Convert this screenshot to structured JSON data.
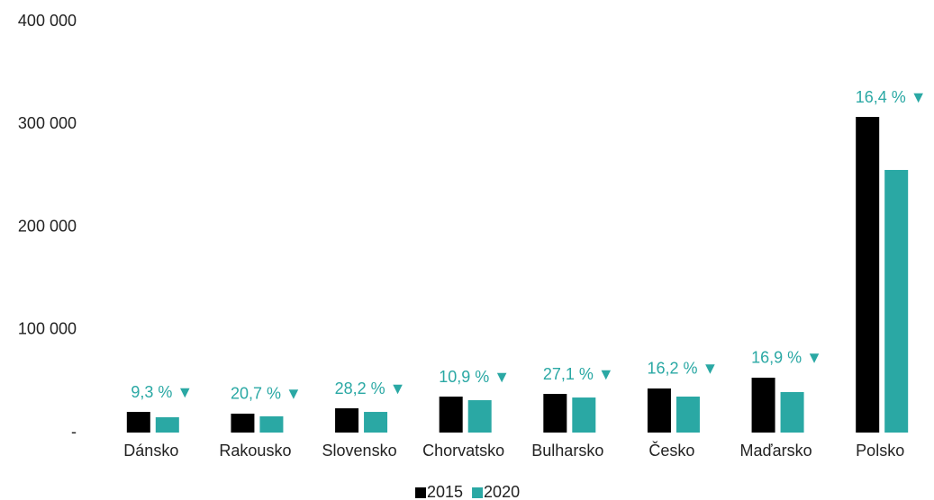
{
  "chart_data": {
    "type": "bar",
    "categories": [
      "Dánsko",
      "Rakousko",
      "Slovensko",
      "Chorvatsko",
      "Bulharsko",
      "Česko",
      "Maďarsko",
      "Polsko"
    ],
    "series": [
      {
        "name": "2015",
        "color": "#000000",
        "values": [
          20100,
          18400,
          23600,
          35000,
          37600,
          42900,
          53400,
          307200
        ]
      },
      {
        "name": "2020",
        "color": "#2aa8a4",
        "values": [
          14900,
          15800,
          20100,
          31500,
          34100,
          35000,
          39400,
          255600
        ]
      }
    ],
    "annotations": [
      "9,3 % ▼",
      "20,7 % ▼",
      "28,2 % ▼",
      "10,9 % ▼",
      "27,1 % ▼",
      "16,2 % ▼",
      "16,9 % ▼",
      "16,4 % ▼"
    ],
    "annotation_color": "#2aa8a4",
    "ylim": [
      0,
      400000
    ],
    "yticks": [
      {
        "value": 0,
        "label": "-"
      },
      {
        "value": 100000,
        "label": "100 000"
      },
      {
        "value": 200000,
        "label": "200 000"
      },
      {
        "value": 300000,
        "label": "300 000"
      },
      {
        "value": 400000,
        "label": "400 000"
      }
    ],
    "grid": false,
    "legend": "bottom"
  }
}
